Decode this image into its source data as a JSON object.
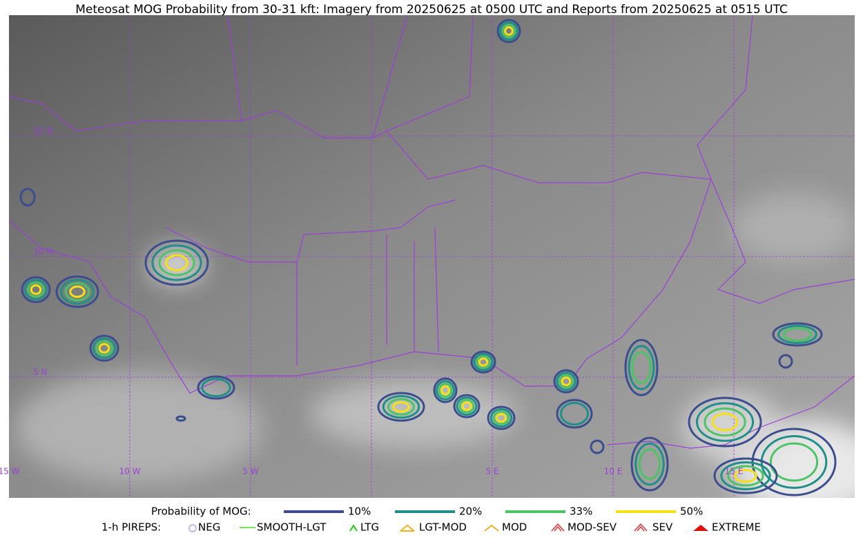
{
  "title": "Meteosat MOG Probability from 30-31 kft: Imagery from 20250625 at 0500 UTC and Reports from 20250625 at 0515 UTC",
  "grid_labels": {
    "lat": [
      "15 N",
      "10 N",
      "5 N"
    ],
    "lon": [
      "15 W",
      "10 W",
      "5 W",
      "5 E",
      "10 E",
      "15 E"
    ]
  },
  "legend": {
    "probability": {
      "label": "Probability of MOG:",
      "levels": [
        {
          "label": "10%",
          "color": "#3b4d8c"
        },
        {
          "label": "20%",
          "color": "#1f8f88"
        },
        {
          "label": "33%",
          "color": "#4cc465"
        },
        {
          "label": "50%",
          "color": "#f5e118"
        }
      ]
    },
    "pireps": {
      "label": "1-h PIREPS:",
      "items": [
        "NEG",
        "SMOOTH-LGT",
        "LTG",
        "LGT-MOD",
        "MOD",
        "MOD-SEV",
        "SEV",
        "EXTREME"
      ]
    }
  }
}
